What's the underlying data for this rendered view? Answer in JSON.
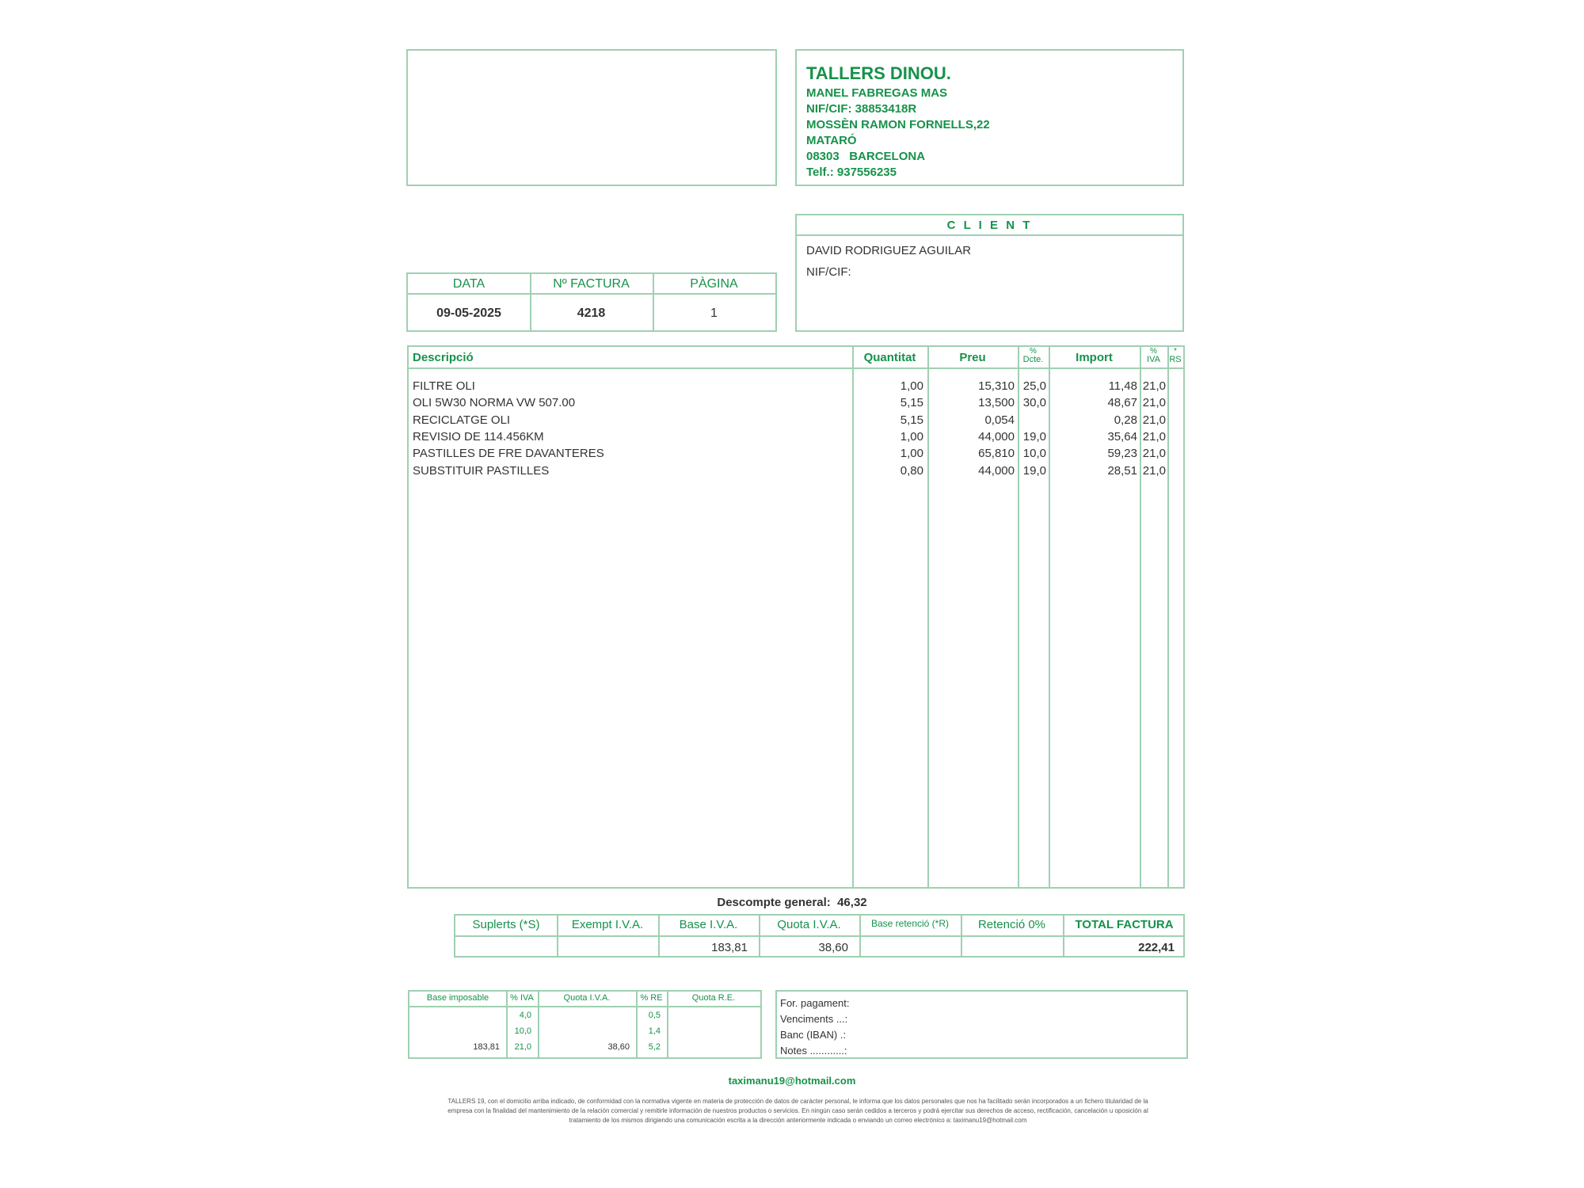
{
  "company": {
    "name": "TALLERS DINOU.",
    "owner": "MANEL FABREGAS MAS",
    "nif": "NIF/CIF: 38853418R",
    "address": "MOSSÈN RAMON FORNELLS,22",
    "city": "MATARÓ",
    "postal": "08303   BARCELONA",
    "phone": "Telf.: 937556235"
  },
  "client": {
    "title": "C L I E N T",
    "name": "DAVID RODRIGUEZ AGUILAR",
    "nif_label": "NIF/CIF:"
  },
  "invoice": {
    "date_label": "DATA",
    "number_label": "Nº  FACTURA",
    "page_label": "PÀGINA",
    "date": "09-05-2025",
    "number": "4218",
    "page": "1"
  },
  "items_header": {
    "desc": "Descripció",
    "qty": "Quantitat",
    "price": "Preu",
    "disc_top": "%",
    "disc": "Dcte.",
    "amount": "Import",
    "iva_top": "%",
    "iva": "IVA",
    "rs_top": "*",
    "rs": "RS"
  },
  "items": [
    {
      "desc": "FILTRE OLI",
      "qty": "1,00",
      "price": "15,310",
      "disc": "25,0",
      "amount": "11,48",
      "iva": "21,0"
    },
    {
      "desc": "OLI 5W30 NORMA VW 507.00",
      "qty": "5,15",
      "price": "13,500",
      "disc": "30,0",
      "amount": "48,67",
      "iva": "21,0"
    },
    {
      "desc": "RECICLATGE OLI",
      "qty": "5,15",
      "price": "0,054",
      "disc": "",
      "amount": "0,28",
      "iva": "21,0"
    },
    {
      "desc": "REVISIO DE 114.456KM",
      "qty": "1,00",
      "price": "44,000",
      "disc": "19,0",
      "amount": "35,64",
      "iva": "21,0"
    },
    {
      "desc": "PASTILLES DE FRE DAVANTERES",
      "qty": "1,00",
      "price": "65,810",
      "disc": "10,0",
      "amount": "59,23",
      "iva": "21,0"
    },
    {
      "desc": "SUBSTITUIR PASTILLES",
      "qty": "0,80",
      "price": "44,000",
      "disc": "19,0",
      "amount": "28,51",
      "iva": "21,0"
    }
  ],
  "discount": {
    "label": "Descompte general:",
    "value": "46,32"
  },
  "totals": {
    "headers": [
      "Suplerts (*S)",
      "Exempt I.V.A.",
      "Base  I.V.A.",
      "Quota  I.V.A.",
      "Base retenció (*R)",
      "Retenció 0%",
      "TOTAL FACTURA"
    ],
    "values": [
      "",
      "",
      "183,81",
      "38,60",
      "",
      "",
      "222,41"
    ]
  },
  "tax": {
    "headers": [
      "Base imposable",
      "% IVA",
      "Quota I.V.A.",
      "% RE",
      "Quota R.E."
    ],
    "rows": [
      [
        "",
        "4,0",
        "",
        "0,5",
        ""
      ],
      [
        "",
        "10,0",
        "",
        "1,4",
        ""
      ],
      [
        "183,81",
        "21,0",
        "38,60",
        "5,2",
        ""
      ]
    ]
  },
  "payment": {
    "method": "For. pagament:",
    "due": "Venciments ...:",
    "bank": "Banc  (IBAN) .:",
    "notes": "Notes ............:"
  },
  "email": "taximanu19@hotmail.com",
  "legal": [
    "TALLERS 19, con el domicilio arriba indicado, de conformidad con la normativa vigente en materia de protección de datos de carácter personal, le informa que los datos personales que nos ha facilitado serán incorporados a un fichero titularidad de la",
    "empresa con la finalidad del mantenimiento de la relación comercial y remitirle información de nuestros productos o servicios. En ningún caso serán cedidos a terceros y podrá ejercitar sus derechos de acceso, rectificación, cancelación u oposición al",
    "tratamiento de los mismos dirigiendo una comunicación escrita a la dirección anteriormente indicada o enviando un correo electrónico a: taximanu19@hotmail.com"
  ],
  "colors": {
    "green": "#16924a",
    "border": "#9fd0b2"
  }
}
